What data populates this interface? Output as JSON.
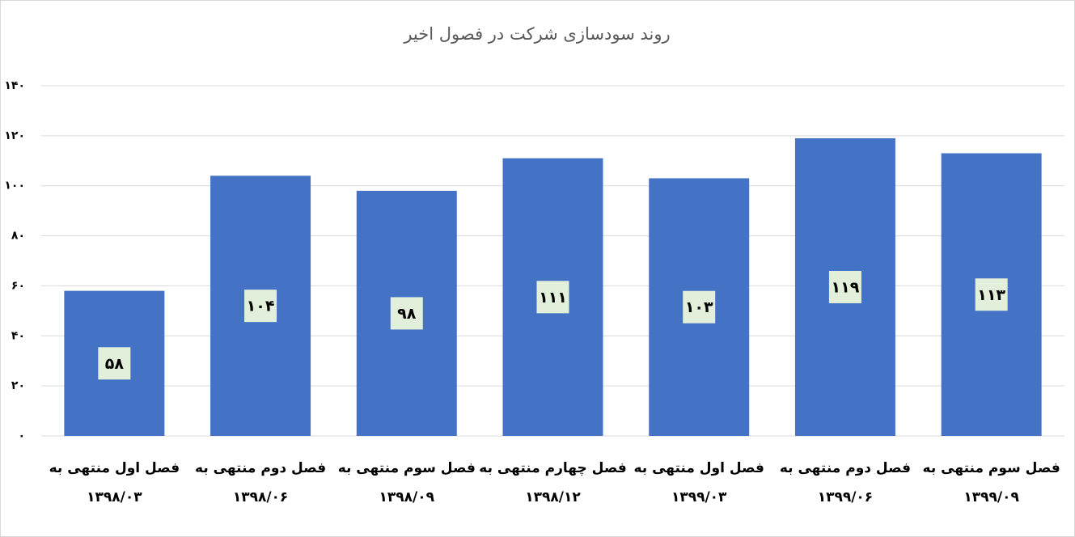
{
  "chart_data": {
    "type": "bar",
    "title": "روند سودسازی شرکت در فصول  اخیر",
    "categories": [
      "فصل اول منتهی به\n۱۳۹۸/۰۳",
      "فصل دوم منتهی به\n۱۳۹۸/۰۶",
      "فصل سوم منتهی به\n۱۳۹۸/۰۹",
      "فصل چهارم منتهی به\n۱۳۹۸/۱۲",
      "فصل اول منتهی به\n۱۳۹۹/۰۳",
      "فصل دوم منتهی به\n۱۳۹۹/۰۶",
      "فصل سوم منتهی به\n۱۳۹۹/۰۹"
    ],
    "values": [
      58,
      104,
      98,
      111,
      103,
      119,
      113
    ],
    "value_labels": [
      "۵۸",
      "۱۰۴",
      "۹۸",
      "۱۱۱",
      "۱۰۳",
      "۱۱۹",
      "۱۱۳"
    ],
    "color": "#4472c4",
    "ylim": [
      0,
      140
    ],
    "yticks": [
      {
        "value": 0,
        "label": "۰"
      },
      {
        "value": 20,
        "label": "۲۰"
      },
      {
        "value": 40,
        "label": "۴۰"
      },
      {
        "value": 60,
        "label": "۶۰"
      },
      {
        "value": 80,
        "label": "۸۰"
      },
      {
        "value": 100,
        "label": "۱۰۰"
      },
      {
        "value": 120,
        "label": "۱۲۰"
      },
      {
        "value": 140,
        "label": "۱۴۰"
      }
    ],
    "grid": true
  }
}
